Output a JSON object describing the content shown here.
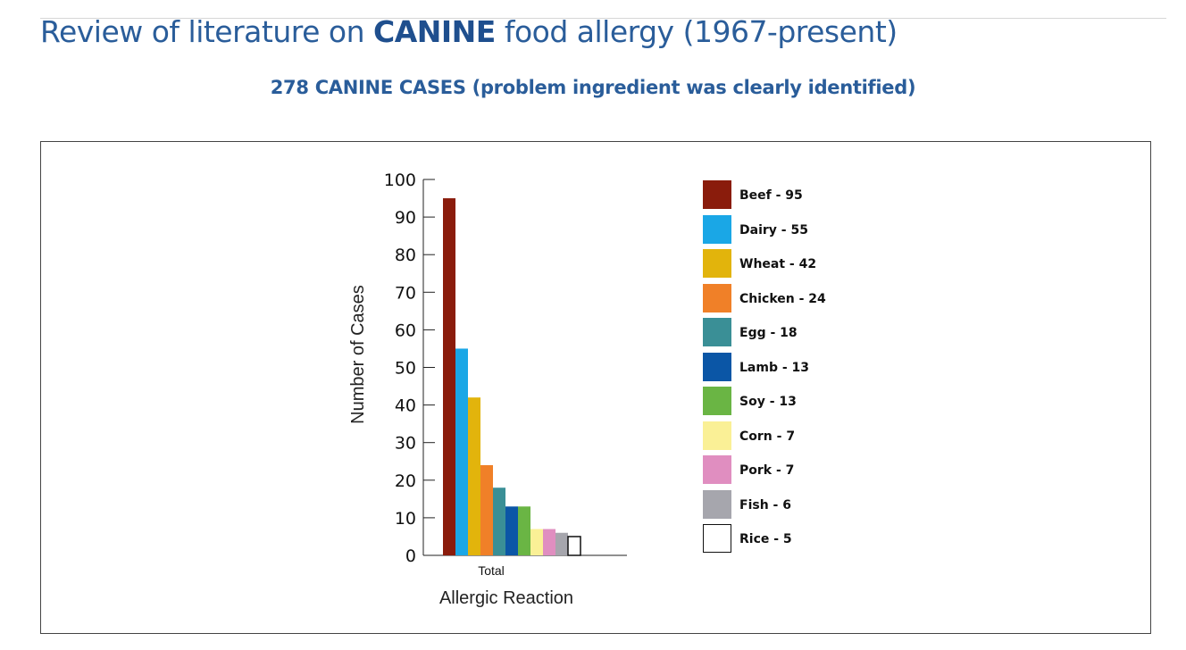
{
  "header": {
    "title_prefix": "Review of literature on",
    "title_strong": "CANINE",
    "title_suffix": "food allergy (1967-present)",
    "subtitle": "278 CANINE CASES (problem ingredient was clearly identified)"
  },
  "chart_data": {
    "type": "bar",
    "categories": [
      "Total"
    ],
    "xlabel": "Allergic Reaction",
    "ylabel": "Number of Cases",
    "ylim": [
      0,
      100
    ],
    "yticks": [
      0,
      10,
      20,
      30,
      40,
      50,
      60,
      70,
      80,
      90,
      100
    ],
    "grid": false,
    "legend_position": "right",
    "series": [
      {
        "name": "Beef",
        "values": [
          95
        ],
        "color": "#8a1c0c",
        "legend_label": "Beef - 95"
      },
      {
        "name": "Dairy",
        "values": [
          55
        ],
        "color": "#1aa7e6",
        "legend_label": "Dairy - 55"
      },
      {
        "name": "Wheat",
        "values": [
          42
        ],
        "color": "#e2b40c",
        "legend_label": "Wheat - 42"
      },
      {
        "name": "Chicken",
        "values": [
          24
        ],
        "color": "#f08028",
        "legend_label": "Chicken - 24"
      },
      {
        "name": "Egg",
        "values": [
          18
        ],
        "color": "#3a8f96",
        "legend_label": "Egg - 18"
      },
      {
        "name": "Lamb",
        "values": [
          13
        ],
        "color": "#0b56a6",
        "legend_label": "Lamb - 13"
      },
      {
        "name": "Soy",
        "values": [
          13
        ],
        "color": "#6ab544",
        "legend_label": "Soy - 13"
      },
      {
        "name": "Corn",
        "values": [
          7
        ],
        "color": "#faf096",
        "legend_label": "Corn - 7"
      },
      {
        "name": "Pork",
        "values": [
          7
        ],
        "color": "#e08ec0",
        "legend_label": "Pork - 7"
      },
      {
        "name": "Fish",
        "values": [
          6
        ],
        "color": "#a6a6ad",
        "legend_label": "Fish - 6"
      },
      {
        "name": "Rice",
        "values": [
          5
        ],
        "color": "#ffffff",
        "legend_label": "Rice - 5"
      }
    ]
  }
}
